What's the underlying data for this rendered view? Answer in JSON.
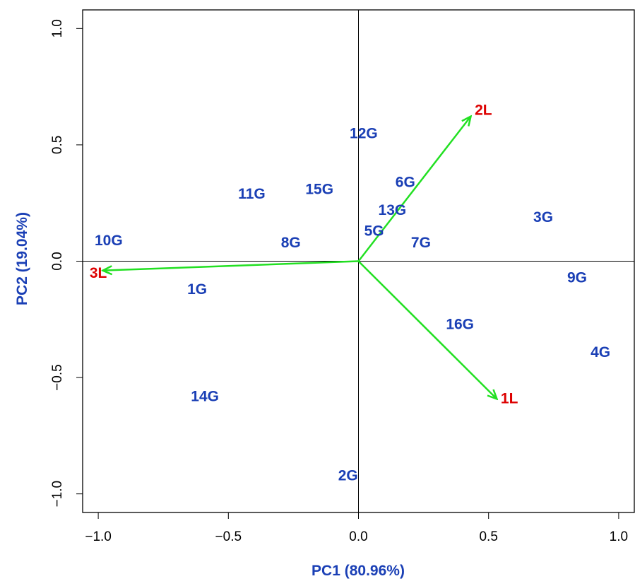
{
  "chart_data": {
    "type": "scatter",
    "title": "",
    "xlabel": "PC1 (80.96%)",
    "ylabel": "PC2 (19.04%)",
    "xlim": [
      -1.06,
      1.06
    ],
    "ylim": [
      -1.08,
      1.08
    ],
    "x_ticks": [
      {
        "value": -1.0,
        "label": "−1.0"
      },
      {
        "value": -0.5,
        "label": "−0.5"
      },
      {
        "value": 0.0,
        "label": "0.0"
      },
      {
        "value": 0.5,
        "label": "0.5"
      },
      {
        "value": 1.0,
        "label": "1.0"
      }
    ],
    "y_ticks": [
      {
        "value": -1.0,
        "label": "−1.0"
      },
      {
        "value": -0.5,
        "label": "−0.5"
      },
      {
        "value": 0.0,
        "label": "0.0"
      },
      {
        "value": 0.5,
        "label": "0.5"
      },
      {
        "value": 1.0,
        "label": "1.0"
      }
    ],
    "reference_lines": {
      "x": 0,
      "y": 0
    },
    "grid": false,
    "legend": "none",
    "colors": {
      "points": "#1a3fb5",
      "loadings": "#dd0000",
      "arrows": "#22e022",
      "axis_title": "#1a3fb5",
      "frame": "#000000"
    },
    "series": [
      {
        "points": [
          {
            "label": "1G",
            "x": -0.62,
            "y": -0.12
          },
          {
            "label": "2G",
            "x": -0.04,
            "y": -0.92
          },
          {
            "label": "3G",
            "x": 0.71,
            "y": 0.19
          },
          {
            "label": "4G",
            "x": 0.93,
            "y": -0.39
          },
          {
            "label": "5G",
            "x": 0.06,
            "y": 0.13
          },
          {
            "label": "6G",
            "x": 0.18,
            "y": 0.34
          },
          {
            "label": "7G",
            "x": 0.24,
            "y": 0.08
          },
          {
            "label": "8G",
            "x": -0.26,
            "y": 0.08
          },
          {
            "label": "9G",
            "x": 0.84,
            "y": -0.07
          },
          {
            "label": "10G",
            "x": -0.96,
            "y": 0.09
          },
          {
            "label": "11G",
            "x": -0.41,
            "y": 0.29
          },
          {
            "label": "12G",
            "x": 0.02,
            "y": 0.55
          },
          {
            "label": "13G",
            "x": 0.13,
            "y": 0.22
          },
          {
            "label": "14G",
            "x": -0.59,
            "y": -0.58
          },
          {
            "label": "15G",
            "x": -0.15,
            "y": 0.31
          },
          {
            "label": "16G",
            "x": 0.39,
            "y": -0.27
          }
        ]
      },
      {
        "loadings": [
          {
            "label": "1L",
            "x": 0.53,
            "y": -0.59,
            "label_x": 0.58,
            "label_y": -0.59
          },
          {
            "label": "2L",
            "x": 0.43,
            "y": 0.62,
            "label_x": 0.48,
            "label_y": 0.65
          },
          {
            "label": "3L",
            "x": -0.98,
            "y": -0.04,
            "label_x": -1.0,
            "label_y": -0.05
          }
        ]
      }
    ]
  }
}
